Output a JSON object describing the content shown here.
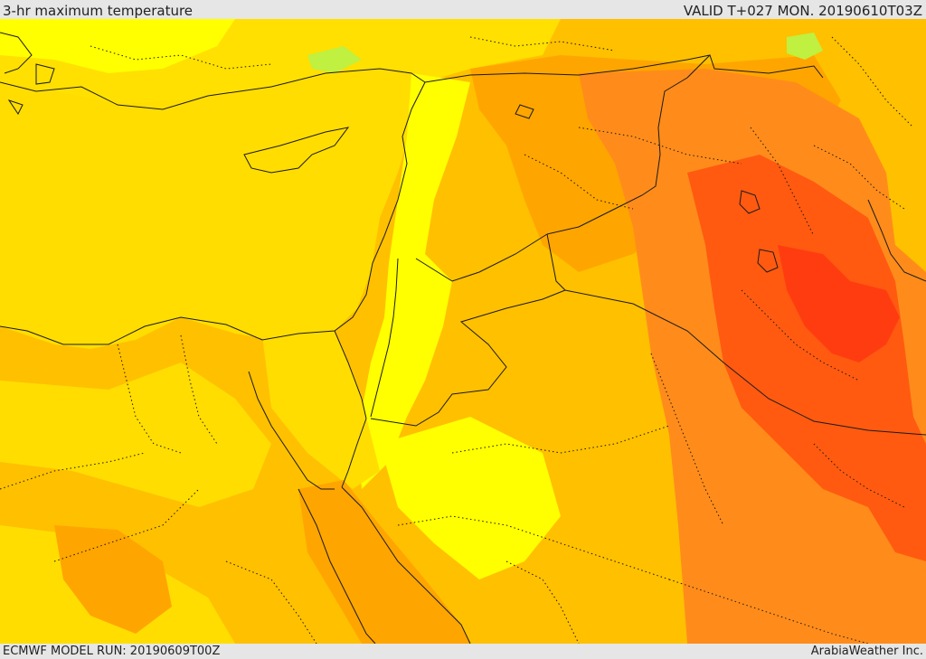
{
  "header": {
    "title": "3-hr maximum temperature",
    "valid": "VALID T+027 MON. 20190610T03Z"
  },
  "footer": {
    "model_run": "ECMWF MODEL RUN: 20190609T00Z",
    "credit": "ArabiaWeather Inc."
  },
  "map": {
    "palette": {
      "very_light": "#c0f040",
      "light": "#ffff00",
      "mid": "#ffdd00",
      "warm": "#ffc000",
      "orange": "#ffa500",
      "dark_orange": "#ff8c1a",
      "red_orange": "#ff5a10",
      "red": "#ff3c10"
    }
  }
}
